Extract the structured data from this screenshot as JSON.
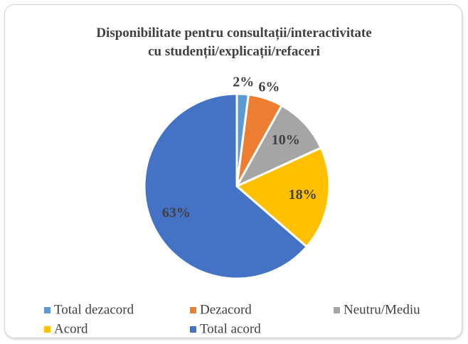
{
  "chart_data": {
    "type": "pie",
    "title": "Disponibilitate pentru consultații/interactivitate\ncu studenții/explicații/refaceri",
    "categories": [
      "Total dezacord",
      "Dezacord",
      "Neutru/Mediu",
      "Acord",
      "Total acord"
    ],
    "values": [
      2,
      6,
      10,
      18,
      63
    ],
    "value_labels": [
      "2%",
      "6%",
      "10%",
      "18%",
      "63%"
    ],
    "colors": [
      "#5b9bd5",
      "#ed7d31",
      "#a5a5a5",
      "#ffc000",
      "#4472c4"
    ],
    "legend": "bottom"
  }
}
